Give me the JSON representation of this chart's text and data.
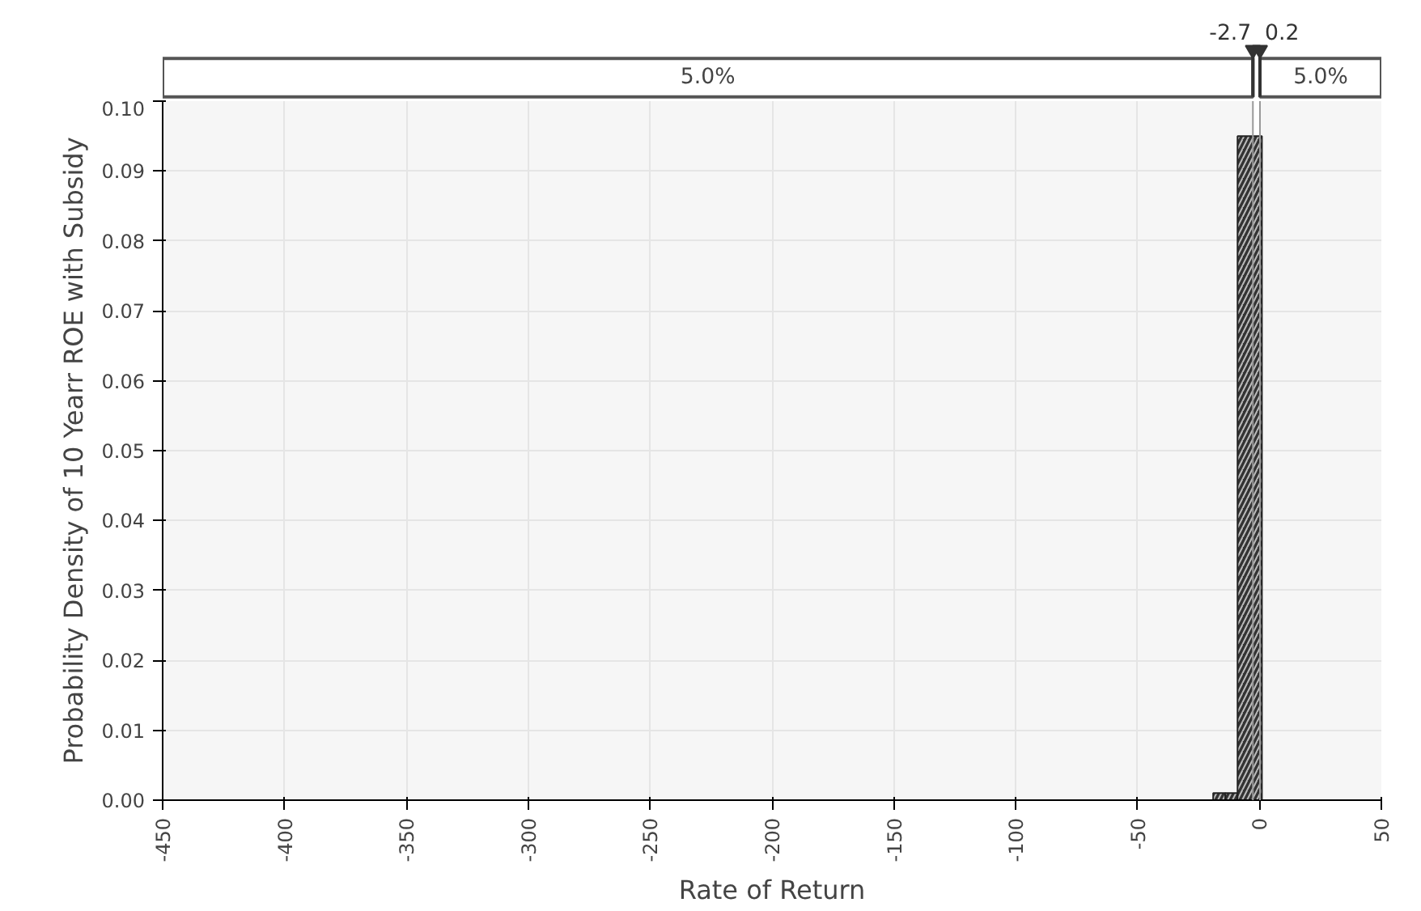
{
  "chart_data": {
    "type": "histogram",
    "xlabel": "Rate of Return",
    "ylabel": "Probability Density of 10 Yearr ROE with Subsidy",
    "bins": [
      -19,
      -14,
      -9,
      1
    ],
    "values": [
      0.001,
      0.001,
      0.095
    ],
    "color": "#333333",
    "xlim": [
      -450,
      50
    ],
    "xticks": [
      -450,
      -400,
      -350,
      -300,
      -250,
      -200,
      -150,
      -100,
      -50,
      0,
      50
    ],
    "ylim": [
      0,
      0.1
    ],
    "yticks": [
      {
        "value": 0,
        "label": "0.00"
      },
      0.01,
      0.02,
      0.03,
      0.04,
      0.05,
      0.06,
      0.07,
      0.08,
      0.09,
      {
        "value": 0.1,
        "label": "0.10"
      }
    ],
    "grid": true,
    "ref_lines": [
      {
        "axis": "x",
        "value": -2.7,
        "label": "-2.7"
      },
      {
        "axis": "x",
        "value": 0.2,
        "label": "0.2"
      }
    ],
    "bands": [
      {
        "axis": "x",
        "from": -450,
        "to": -2.7,
        "label": "5.0%"
      },
      {
        "axis": "x",
        "from": 0.2,
        "to": 50,
        "label": "5.0%"
      }
    ]
  }
}
